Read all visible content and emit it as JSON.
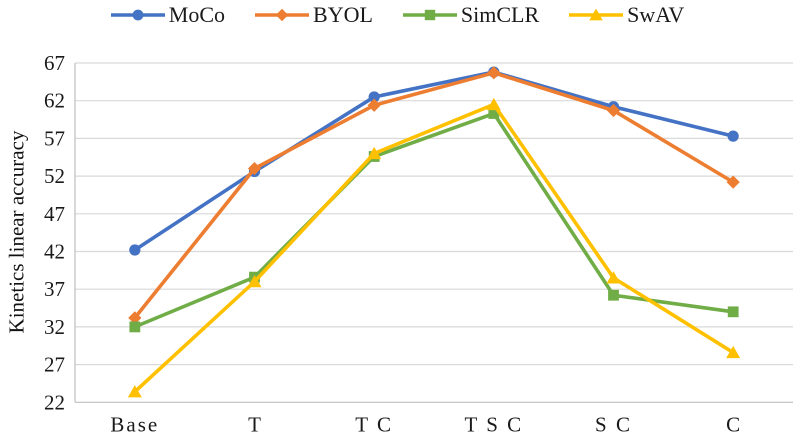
{
  "chart_data": {
    "type": "line",
    "title": "",
    "xlabel": "",
    "ylabel": "Kinetics linear accuracy",
    "categories": [
      "Base",
      "T",
      "T C",
      "T S C",
      "S C",
      "C"
    ],
    "ylim": [
      22,
      67
    ],
    "ytick_step": 5,
    "yticks": [
      22,
      27,
      32,
      37,
      42,
      47,
      52,
      57,
      62,
      67
    ],
    "grid": true,
    "legend_position": "top",
    "series": [
      {
        "name": "MoCo",
        "color": "#4472C4",
        "marker": "circle",
        "values": [
          42.2,
          52.6,
          62.5,
          65.8,
          61.2,
          57.3
        ]
      },
      {
        "name": "BYOL",
        "color": "#ED7D31",
        "marker": "diamond",
        "values": [
          33.2,
          53.0,
          61.4,
          65.7,
          60.7,
          51.2
        ]
      },
      {
        "name": "SimCLR",
        "color": "#70AD47",
        "marker": "square",
        "values": [
          32.0,
          38.6,
          54.6,
          60.3,
          36.2,
          34.0
        ]
      },
      {
        "name": "SwAV",
        "color": "#FFC000",
        "marker": "triangle",
        "values": [
          23.4,
          38.0,
          55.0,
          61.5,
          38.5,
          28.6
        ]
      }
    ],
    "colors": {
      "gridline": "#D9D9D9",
      "axis_line": "#BFBFBF",
      "tick_text": "#1a1a1a"
    }
  }
}
